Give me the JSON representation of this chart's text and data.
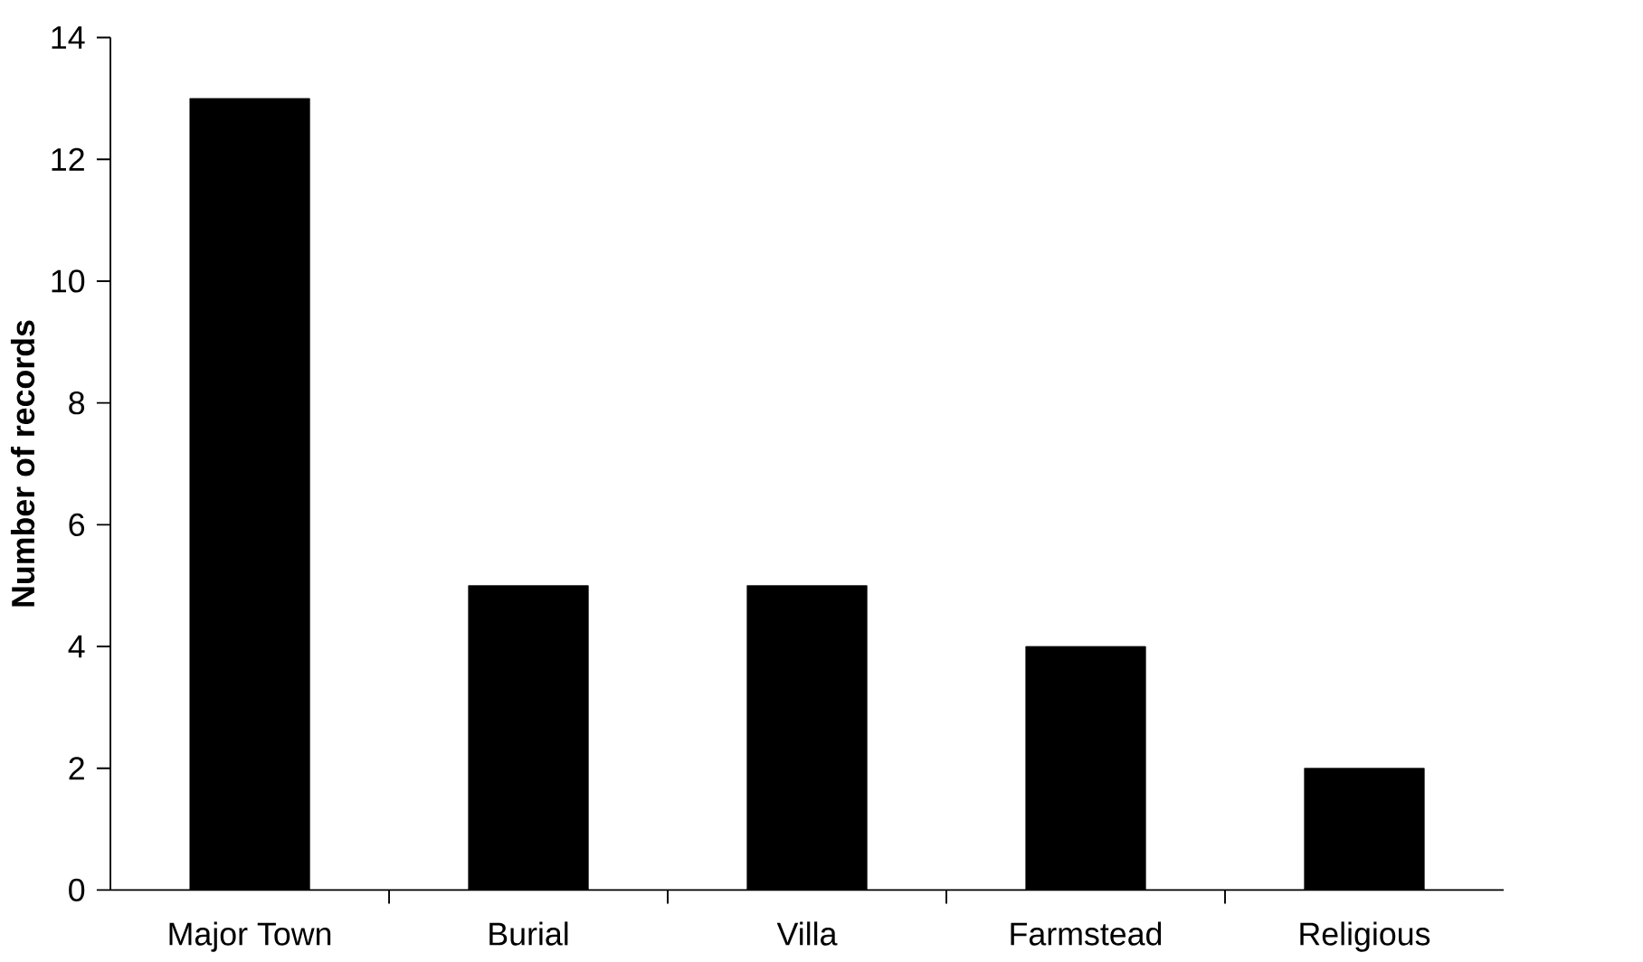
{
  "chart_data": {
    "type": "bar",
    "ylabel": "Number of records",
    "categories": [
      "Major Town",
      "Burial",
      "Villa",
      "Farmstead",
      "Religious"
    ],
    "values": [
      13,
      5,
      5,
      4,
      2
    ],
    "color": "#000000",
    "ylim": [
      0,
      14
    ],
    "yticks": [
      0,
      2,
      4,
      6,
      8,
      10,
      12,
      14
    ]
  }
}
